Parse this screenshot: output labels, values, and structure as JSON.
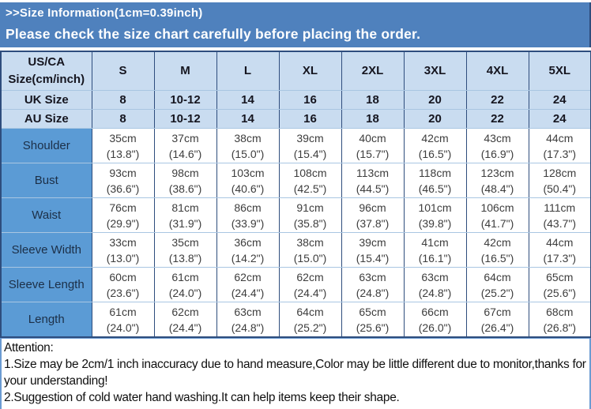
{
  "banner": {
    "line1": ">>Size Information(1cm=0.39inch)",
    "line2": "Please check the size chart carefully before placing the order."
  },
  "colors": {
    "banner_bg": "#4f81bd",
    "header_row_bg": "#c9dcf0",
    "label_col_bg": "#5b9bd5",
    "grid_vertical": "#2e4d7d",
    "grid_horizontal": "#a9c6e2",
    "banner_text": "#ffffff"
  },
  "table": {
    "header": {
      "label": "US/CA Size(cm/inch)",
      "sizes": [
        "S",
        "M",
        "L",
        "XL",
        "2XL",
        "3XL",
        "4XL",
        "5XL"
      ]
    },
    "size_rows": [
      {
        "label": "UK Size",
        "values": [
          "8",
          "10-12",
          "14",
          "16",
          "18",
          "20",
          "22",
          "24"
        ]
      },
      {
        "label": "AU Size",
        "values": [
          "8",
          "10-12",
          "14",
          "16",
          "18",
          "20",
          "22",
          "24"
        ]
      }
    ],
    "measurement_rows": [
      {
        "label": "Shoulder",
        "cm": [
          "35cm",
          "37cm",
          "38cm",
          "39cm",
          "40cm",
          "42cm",
          "43cm",
          "44cm"
        ],
        "inch": [
          "(13.8\")",
          "(14.6\")",
          "(15.0\")",
          "(15.4\")",
          "(15.7\")",
          "(16.5\")",
          "(16.9\")",
          "(17.3\")"
        ]
      },
      {
        "label": "Bust",
        "cm": [
          "93cm",
          "98cm",
          "103cm",
          "108cm",
          "113cm",
          "118cm",
          "123cm",
          "128cm"
        ],
        "inch": [
          "(36.6\")",
          "(38.6\")",
          "(40.6\")",
          "(42.5\")",
          "(44.5\")",
          "(46.5\")",
          "(48.4\")",
          "(50.4\")"
        ]
      },
      {
        "label": "Waist",
        "cm": [
          "76cm",
          "81cm",
          "86cm",
          "91cm",
          "96cm",
          "101cm",
          "106cm",
          "111cm"
        ],
        "inch": [
          "(29.9\")",
          "(31.9\")",
          "(33.9\")",
          "(35.8\")",
          "(37.8\")",
          "(39.8\")",
          "(41.7\")",
          "(43.7\")"
        ]
      },
      {
        "label": "Sleeve Width",
        "cm": [
          "33cm",
          "35cm",
          "36cm",
          "38cm",
          "39cm",
          "41cm",
          "42cm",
          "44cm"
        ],
        "inch": [
          "(13.0\")",
          "(13.8\")",
          "(14.2\")",
          "(15.0\")",
          "(15.4\")",
          "(16.1\")",
          "(16.5\")",
          "(17.3\")"
        ]
      },
      {
        "label": "Sleeve Length",
        "cm": [
          "60cm",
          "61cm",
          "62cm",
          "62cm",
          "63cm",
          "63cm",
          "64cm",
          "65cm"
        ],
        "inch": [
          "(23.6\")",
          "(24.0\")",
          "(24.4\")",
          "(24.4\")",
          "(24.8\")",
          "(24.8\")",
          "(25.2\")",
          "(25.6\")"
        ]
      },
      {
        "label": "Length",
        "cm": [
          "61cm",
          "62cm",
          "63cm",
          "64cm",
          "65cm",
          "66cm",
          "67cm",
          "68cm"
        ],
        "inch": [
          "(24.0\")",
          "(24.4\")",
          "(24.8\")",
          "(25.2\")",
          "(25.6\")",
          "(26.0\")",
          "(26.4\")",
          "(26.8\")"
        ]
      }
    ]
  },
  "attention": {
    "title": "Attention:",
    "notes": [
      "1.Size may be 2cm/1 inch inaccuracy due to hand measure,Color may be little different due to monitor,thanks for your understanding!",
      "2.Suggestion of cold water hand washing.It can help items keep their shape."
    ]
  }
}
